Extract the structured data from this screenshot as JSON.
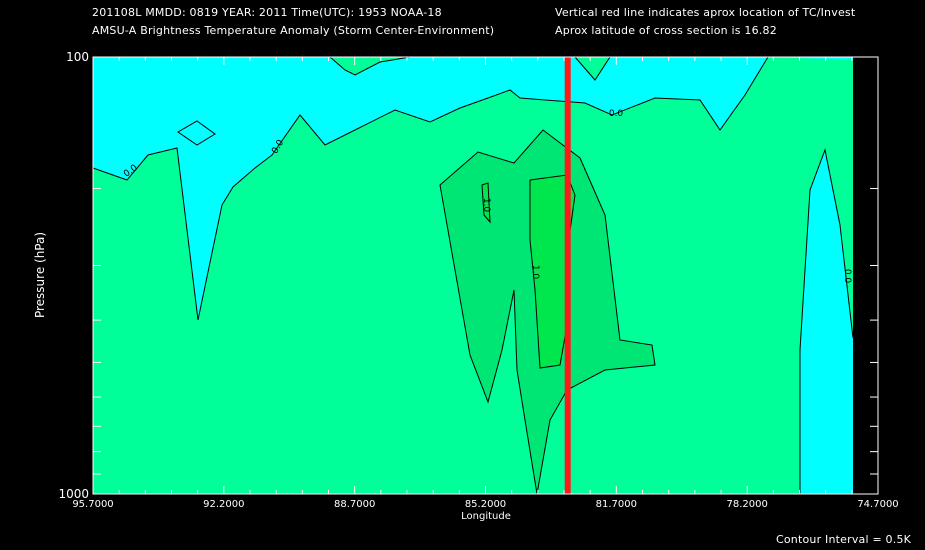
{
  "header": {
    "line1": "201108L  MMDD: 0819 YEAR: 2011 Time(UTC): 1953 NOAA-18",
    "line2": "AMSU-A Brightness Temperature Anomaly (Storm Center-Environment)",
    "line3": "Vertical red line indicates aprox location of TC/Invest",
    "line4": "Aprox latitude of cross section is 16.82"
  },
  "footer": {
    "contour_interval": "Contour Interval = 0.5K"
  },
  "colors": {
    "background": "#000000",
    "cyan_region": "#00ffff",
    "zero_to_one": "#00ff99",
    "above_one": "#00e74c",
    "storm_line": "#ff1a1a"
  },
  "chart_data": {
    "type": "contour",
    "xlabel": "Longitude",
    "ylabel": "Pressure (hPa)",
    "x_ticks": [
      "95.7000",
      "92.2000",
      "88.7000",
      "85.2000",
      "81.7000",
      "78.2000",
      "74.7000"
    ],
    "x_range": [
      95.7,
      74.7
    ],
    "y_ticks": [
      "100",
      "1000"
    ],
    "y_range": [
      100,
      1000
    ],
    "y_scale": "log",
    "storm_center_longitude": 83.0,
    "contour_levels": [
      0.0,
      1.0
    ],
    "contour_labels": [
      "0.0",
      "0.0",
      "0.0",
      "1.0",
      "1.0",
      "0.0"
    ]
  }
}
